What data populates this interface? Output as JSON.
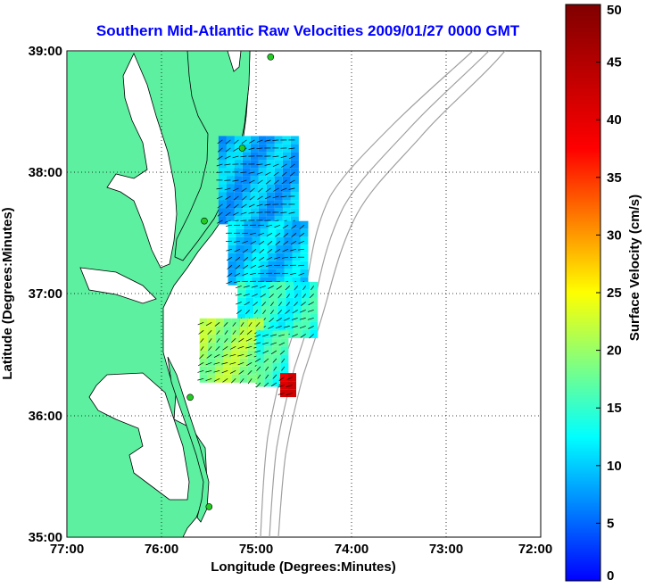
{
  "chart_data": {
    "type": "heatmap",
    "title": "Southern Mid-Atlantic Raw Velocities 2009/01/27 0000 GMT",
    "xlabel": "Longitude (Degrees:Minutes)",
    "ylabel": "Latitude (Degrees:Minutes)",
    "x_ticks": [
      "77:00",
      "76:00",
      "75:00",
      "74:00",
      "73:00",
      "72:00"
    ],
    "y_ticks": [
      "35:00",
      "36:00",
      "37:00",
      "38:00",
      "39:00"
    ],
    "xlim": [
      -77,
      -72
    ],
    "ylim": [
      35,
      39
    ],
    "grid": true,
    "colorbar": {
      "label": "Surface Velocity (cm/s)",
      "range": [
        0,
        50
      ],
      "ticks": [
        "0",
        "5",
        "10",
        "15",
        "20",
        "25",
        "30",
        "35",
        "40",
        "45",
        "50"
      ],
      "colormap": "jet"
    },
    "colors": {
      "land": "#5cf0a0",
      "water": "#ffffff",
      "coastline": "#000000",
      "bathymetry": "#a0a0a0",
      "station": "#22cc22",
      "title": "#0000ff"
    },
    "velocity_regions": [
      {
        "lon": [
          -75.4,
          -74.6
        ],
        "lat": [
          37.6,
          38.3
        ],
        "speed": 9
      },
      {
        "lon": [
          -75.3,
          -74.5
        ],
        "lat": [
          37.1,
          37.6
        ],
        "speed": 10
      },
      {
        "lon": [
          -75.2,
          -74.4
        ],
        "lat": [
          36.7,
          37.1
        ],
        "speed": 14
      },
      {
        "lon": [
          -75.6,
          -75.0
        ],
        "lat": [
          36.3,
          36.8
        ],
        "speed": 20
      },
      {
        "lon": [
          -75.0,
          -74.7
        ],
        "lat": [
          36.3,
          36.7
        ],
        "speed": 15
      },
      {
        "lon": [
          -74.75,
          -74.6
        ],
        "lat": [
          36.2,
          36.35
        ],
        "speed": 40
      }
    ],
    "stations": [
      {
        "lon": -74.85,
        "lat": 38.95
      },
      {
        "lon": -75.15,
        "lat": 38.2
      },
      {
        "lon": -75.55,
        "lat": 37.6
      },
      {
        "lon": -75.7,
        "lat": 36.15
      },
      {
        "lon": -75.5,
        "lat": 35.25
      }
    ]
  }
}
